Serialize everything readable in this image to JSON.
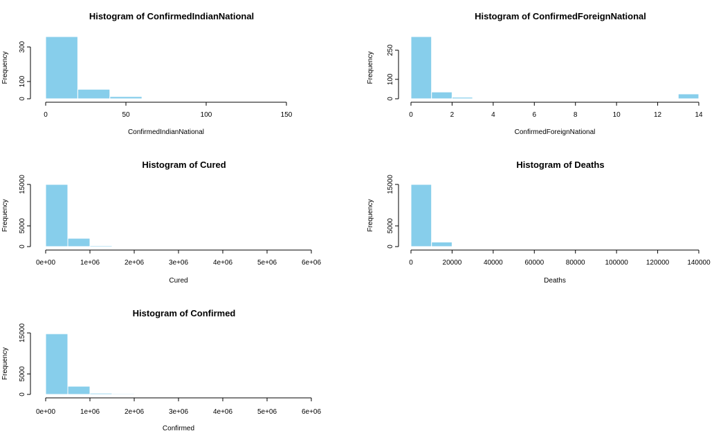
{
  "colors": {
    "bar_fill": "#87ceeb",
    "bar_stroke": "#ffffff",
    "axis": "#000000"
  },
  "chart_data": [
    {
      "type": "bar",
      "title": "Histogram of ConfirmedIndianNational",
      "xlabel": "ConfirmedIndianNational",
      "ylabel": "Frequency",
      "bin_edges": [
        0,
        20,
        40,
        60
      ],
      "values": [
        360,
        55,
        13
      ],
      "xlim": [
        0,
        150
      ],
      "ylim": [
        0,
        360
      ],
      "xticks": [
        0,
        50,
        100,
        150
      ],
      "xtick_labels": [
        "0",
        "50",
        "100",
        "150"
      ],
      "yticks": [
        0,
        100,
        300
      ],
      "ytick_labels": [
        "0",
        "100",
        "300"
      ]
    },
    {
      "type": "bar",
      "title": "Histogram of ConfirmedForeignNational",
      "xlabel": "ConfirmedForeignNational",
      "ylabel": "Frequency",
      "bin_edges": [
        0,
        1,
        2,
        3,
        4,
        5,
        6,
        7,
        8,
        9,
        10,
        11,
        12,
        13,
        14
      ],
      "values": [
        320,
        35,
        8,
        0,
        0,
        0,
        0,
        2,
        0,
        3,
        0,
        0,
        0,
        25
      ],
      "xlim": [
        0,
        14
      ],
      "ylim": [
        0,
        320
      ],
      "xticks": [
        0,
        2,
        4,
        6,
        8,
        10,
        12,
        14
      ],
      "xtick_labels": [
        "0",
        "2",
        "4",
        "6",
        "8",
        "10",
        "12",
        "14"
      ],
      "yticks": [
        0,
        100,
        250
      ],
      "ytick_labels": [
        "0",
        "100",
        "250"
      ]
    },
    {
      "type": "bar",
      "title": "Histogram of Cured",
      "xlabel": "Cured",
      "ylabel": "Frequency",
      "bin_edges": [
        0,
        500000,
        1000000,
        1500000,
        2000000
      ],
      "values": [
        15000,
        2000,
        250,
        150
      ],
      "xlim": [
        0,
        6000000
      ],
      "ylim": [
        0,
        15000
      ],
      "xticks": [
        0,
        1000000,
        2000000,
        3000000,
        4000000,
        5000000,
        6000000
      ],
      "xtick_labels": [
        "0e+00",
        "1e+06",
        "2e+06",
        "3e+06",
        "4e+06",
        "5e+06",
        "6e+06"
      ],
      "yticks": [
        0,
        5000,
        15000
      ],
      "ytick_labels": [
        "0",
        "5000",
        "15000"
      ]
    },
    {
      "type": "bar",
      "title": "Histogram of Deaths",
      "xlabel": "Deaths",
      "ylabel": "Frequency",
      "bin_edges": [
        0,
        10000,
        20000
      ],
      "values": [
        15000,
        1100
      ],
      "xlim": [
        0,
        140000
      ],
      "ylim": [
        0,
        15000
      ],
      "xticks": [
        0,
        20000,
        40000,
        60000,
        80000,
        100000,
        120000,
        140000
      ],
      "xtick_labels": [
        "0",
        "20000",
        "40000",
        "60000",
        "80000",
        "100000",
        "120000",
        "140000"
      ],
      "yticks": [
        0,
        5000,
        15000
      ],
      "ytick_labels": [
        "0",
        "5000",
        "15000"
      ]
    },
    {
      "type": "bar",
      "title": "Histogram of Confirmed",
      "xlabel": "Confirmed",
      "ylabel": "Frequency",
      "bin_edges": [
        0,
        500000,
        1000000,
        1500000,
        2000000
      ],
      "values": [
        14800,
        2000,
        300,
        200
      ],
      "xlim": [
        0,
        6000000
      ],
      "ylim": [
        0,
        15000
      ],
      "xticks": [
        0,
        1000000,
        2000000,
        3000000,
        4000000,
        5000000,
        6000000
      ],
      "xtick_labels": [
        "0e+00",
        "1e+06",
        "2e+06",
        "3e+06",
        "4e+06",
        "5e+06",
        "6e+06"
      ],
      "yticks": [
        0,
        5000,
        15000
      ],
      "ytick_labels": [
        "0",
        "5000",
        "15000"
      ]
    }
  ]
}
